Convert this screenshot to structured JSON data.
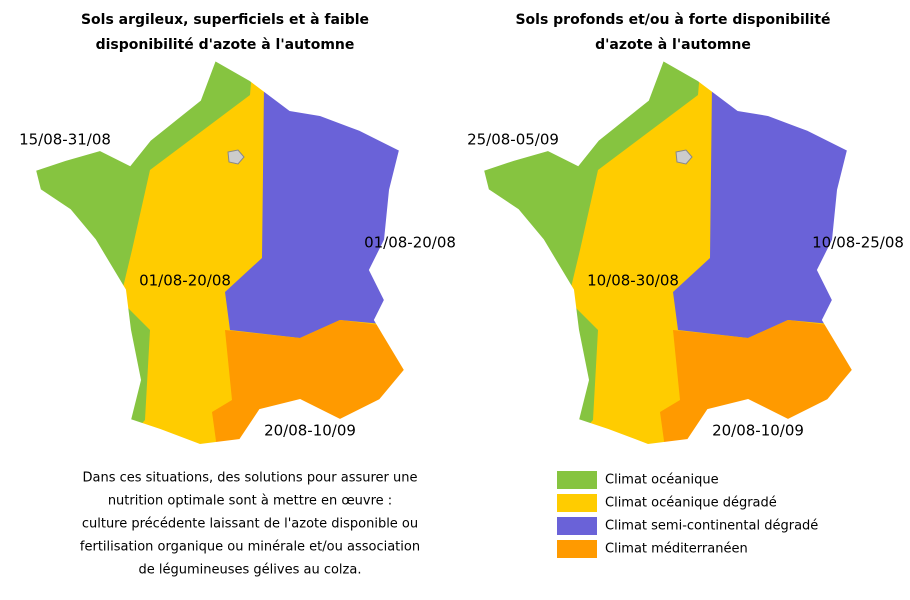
{
  "maps": [
    {
      "title_lines": [
        "Sols argileux, superficiels et à faible",
        "disponibilité d'azote à l'automne"
      ],
      "labels": {
        "west": "15/08-31/08",
        "east": "01/08-20/08",
        "center": "01/08-20/08",
        "south": "20/08-10/09"
      }
    },
    {
      "title_lines": [
        "Sols profonds et/ou à forte disponibilité",
        "d'azote à l'automne"
      ],
      "labels": {
        "west": "25/08-05/09",
        "east": "10/08-25/08",
        "center": "10/08-30/08",
        "south": "20/08-10/09"
      }
    }
  ],
  "note_lines": [
    "Dans ces situations, des solutions pour assurer une",
    "nutrition optimale sont à mettre en œuvre :",
    "culture précédente laissant de l'azote disponible ou",
    "fertilisation organique ou minérale et/ou association",
    "de légumineuses gélives au colza."
  ],
  "legend": {
    "items": [
      {
        "label": "Climat océanique",
        "color": "#86c440"
      },
      {
        "label": "Climat océanique dégradé",
        "color": "#ffcc00"
      },
      {
        "label": "Climat semi-continental dégradé",
        "color": "#6a62d8"
      },
      {
        "label": "Climat méditerranéen",
        "color": "#ff9a00"
      }
    ]
  }
}
